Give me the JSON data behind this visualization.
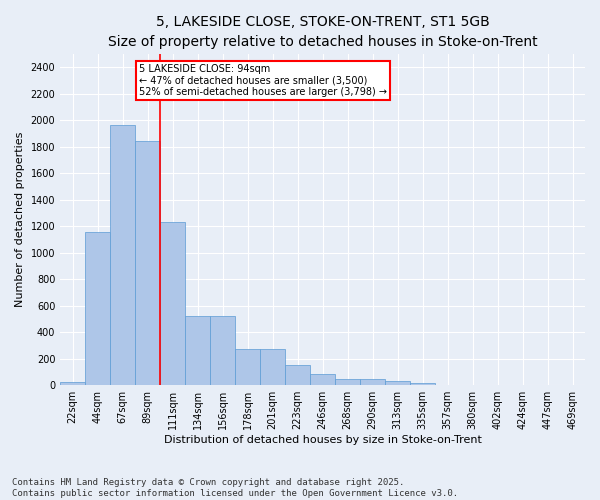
{
  "title": "5, LAKESIDE CLOSE, STOKE-ON-TRENT, ST1 5GB",
  "subtitle": "Size of property relative to detached houses in Stoke-on-Trent",
  "xlabel": "Distribution of detached houses by size in Stoke-on-Trent",
  "ylabel": "Number of detached properties",
  "categories": [
    "22sqm",
    "44sqm",
    "67sqm",
    "89sqm",
    "111sqm",
    "134sqm",
    "156sqm",
    "178sqm",
    "201sqm",
    "223sqm",
    "246sqm",
    "268sqm",
    "290sqm",
    "313sqm",
    "335sqm",
    "357sqm",
    "380sqm",
    "402sqm",
    "424sqm",
    "447sqm",
    "469sqm"
  ],
  "values": [
    25,
    1155,
    1960,
    1840,
    1230,
    520,
    520,
    270,
    270,
    155,
    85,
    45,
    45,
    35,
    15,
    5,
    5,
    5,
    5,
    5,
    5
  ],
  "bar_color": "#aec6e8",
  "bar_edge_color": "#5b9bd5",
  "vline_x": 3.5,
  "vline_color": "red",
  "annotation_text": "5 LAKESIDE CLOSE: 94sqm\n← 47% of detached houses are smaller (3,500)\n52% of semi-detached houses are larger (3,798) →",
  "annotation_box_color": "white",
  "annotation_box_edge_color": "red",
  "ylim": [
    0,
    2500
  ],
  "yticks": [
    0,
    200,
    400,
    600,
    800,
    1000,
    1200,
    1400,
    1600,
    1800,
    2000,
    2200,
    2400
  ],
  "bg_color": "#e8eef7",
  "plot_bg_color": "#e8eef7",
  "footer": "Contains HM Land Registry data © Crown copyright and database right 2025.\nContains public sector information licensed under the Open Government Licence v3.0.",
  "title_fontsize": 10,
  "subtitle_fontsize": 9,
  "xlabel_fontsize": 8,
  "ylabel_fontsize": 8,
  "tick_fontsize": 7,
  "footer_fontsize": 6.5,
  "ann_fontsize": 7
}
